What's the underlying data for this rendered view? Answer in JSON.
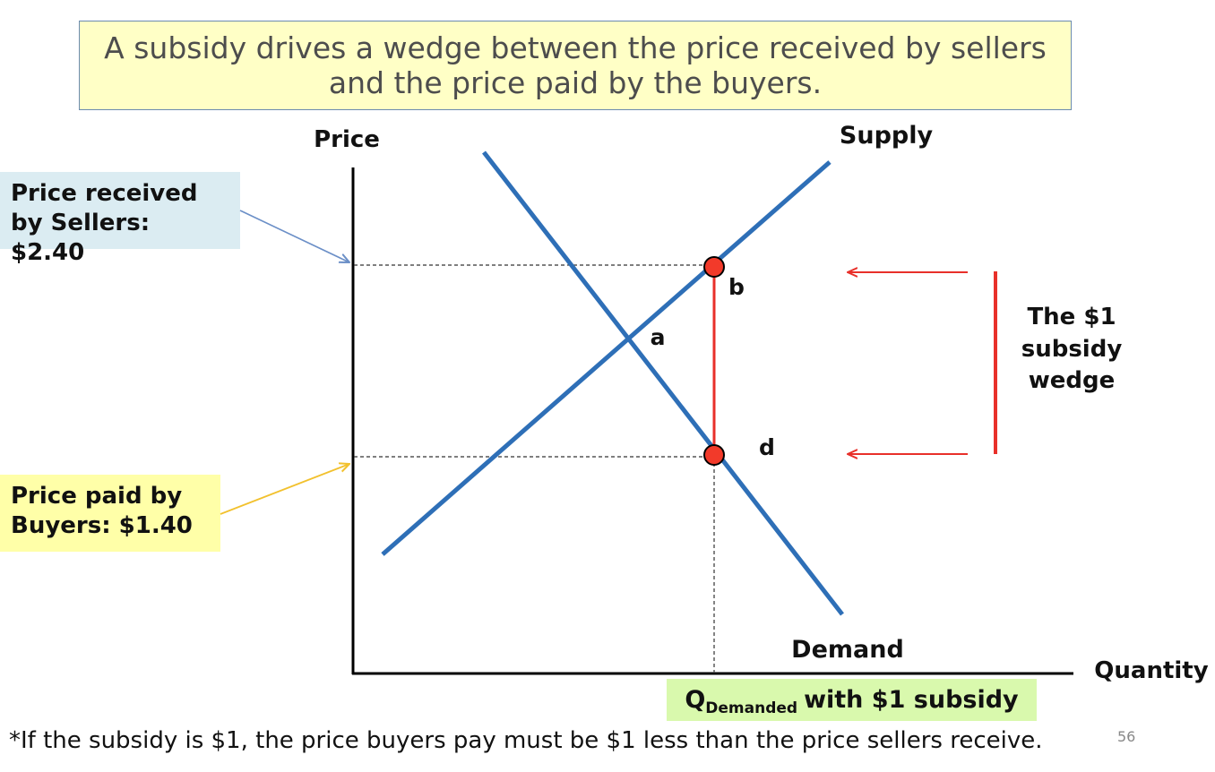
{
  "title": {
    "line1": "A subsidy drives a wedge between the price received by sellers",
    "line2": "and the price paid by the buyers."
  },
  "axes": {
    "y_label": "Price",
    "x_label": "Quantity"
  },
  "curves": {
    "supply_label": "Supply",
    "demand_label": "Demand"
  },
  "points": {
    "a": "a",
    "b": "b",
    "d": "d"
  },
  "callouts": {
    "sellers_line1": "Price received",
    "sellers_line2": "by Sellers: $2.40",
    "buyers_line1": "Price paid by",
    "buyers_line2": "Buyers: $1.40"
  },
  "wedge": {
    "line1": "The $1",
    "line2": "subsidy",
    "line3": "wedge"
  },
  "quantity_label": {
    "q": "Q",
    "sub": "Demanded",
    "rest": "with $1 subsidy"
  },
  "footnote": "*If the subsidy is $1, the price buyers pay must be $1 less than the price sellers receive.",
  "page_number": "56",
  "colors": {
    "curve": "#2e6fb7",
    "wedge": "#e8302a",
    "point_fill": "#f23a2a",
    "sellers_arrow": "#6b8fc7",
    "buyers_arrow": "#f2c12e"
  }
}
